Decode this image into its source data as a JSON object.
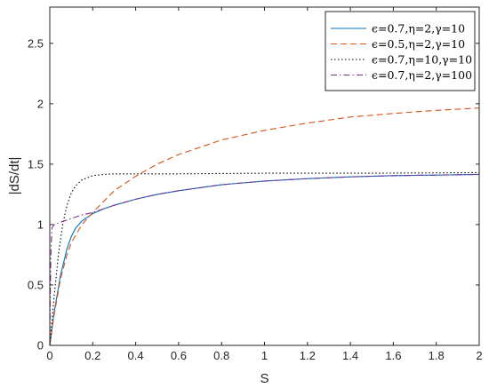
{
  "chart_data": {
    "type": "line",
    "title": "",
    "xlabel": "S",
    "ylabel": "|dS/dt|",
    "xlim": [
      0,
      2
    ],
    "ylim": [
      0,
      2.8
    ],
    "x_ticks": [
      "0",
      "0.2",
      "0.4",
      "0.6",
      "0.8",
      "1",
      "1.2",
      "1.4",
      "1.6",
      "1.8",
      "2"
    ],
    "y_ticks": [
      "0",
      "0.5",
      "1",
      "1.5",
      "2",
      "2.5"
    ],
    "grid": false,
    "legend_position": "top-right",
    "series": [
      {
        "name": "ϵ=0.7,η=2,γ=10",
        "color": "#0072BD",
        "line_style": "solid",
        "x": [
          0,
          0.02,
          0.05,
          0.08,
          0.1,
          0.12,
          0.15,
          0.2,
          0.25,
          0.3,
          0.4,
          0.5,
          0.6,
          0.8,
          1.0,
          1.2,
          1.4,
          1.6,
          1.8,
          2.0
        ],
        "y": [
          0,
          0.27,
          0.58,
          0.8,
          0.9,
          0.97,
          1.03,
          1.09,
          1.13,
          1.16,
          1.21,
          1.25,
          1.28,
          1.33,
          1.36,
          1.38,
          1.395,
          1.405,
          1.41,
          1.415
        ]
      },
      {
        "name": "ϵ=0.5,η=2,γ=10",
        "color": "#D95319",
        "line_style": "dashed",
        "x": [
          0,
          0.02,
          0.05,
          0.08,
          0.1,
          0.15,
          0.2,
          0.3,
          0.4,
          0.5,
          0.6,
          0.8,
          1.0,
          1.2,
          1.4,
          1.6,
          1.8,
          2.0
        ],
        "y": [
          0,
          0.25,
          0.55,
          0.75,
          0.85,
          1.0,
          1.1,
          1.28,
          1.4,
          1.5,
          1.58,
          1.7,
          1.78,
          1.84,
          1.89,
          1.92,
          1.945,
          1.965
        ]
      },
      {
        "name": "ϵ=0.7,η=10,γ=10",
        "color": "#000000",
        "line_style": "dotted",
        "x": [
          0,
          0.02,
          0.04,
          0.06,
          0.08,
          0.1,
          0.12,
          0.15,
          0.2,
          0.25,
          0.3,
          0.4,
          0.6,
          1.0,
          1.5,
          2.0
        ],
        "y": [
          0,
          0.4,
          0.75,
          1.0,
          1.16,
          1.26,
          1.32,
          1.37,
          1.405,
          1.415,
          1.42,
          1.42,
          1.42,
          1.425,
          1.425,
          1.43
        ]
      },
      {
        "name": "ϵ=0.7,η=2,γ=100",
        "color": "#7E2F8E",
        "line_style": "dashdot",
        "x": [
          0,
          0.002,
          0.005,
          0.01,
          0.02,
          0.05,
          0.1,
          0.15,
          0.2,
          0.25,
          0.3,
          0.4,
          0.5,
          0.6,
          0.8,
          1.0,
          1.2,
          1.4,
          1.6,
          1.8,
          2.0
        ],
        "y": [
          0,
          0.4,
          0.75,
          0.97,
          1.0,
          1.02,
          1.05,
          1.08,
          1.1,
          1.13,
          1.16,
          1.21,
          1.25,
          1.28,
          1.33,
          1.36,
          1.38,
          1.395,
          1.405,
          1.41,
          1.415
        ]
      }
    ]
  }
}
